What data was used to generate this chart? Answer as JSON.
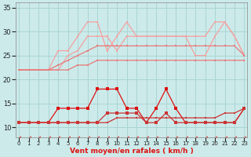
{
  "x": [
    0,
    1,
    2,
    3,
    4,
    5,
    6,
    7,
    8,
    9,
    10,
    11,
    12,
    13,
    14,
    15,
    16,
    17,
    18,
    19,
    20,
    21,
    22,
    23
  ],
  "line_rafale_high": [
    22,
    22,
    22,
    22,
    26,
    26,
    29,
    32,
    32,
    26,
    29,
    32,
    29,
    29,
    29,
    29,
    29,
    29,
    29,
    29,
    32,
    32,
    29,
    25
  ],
  "line_rafale_low": [
    22,
    22,
    22,
    22,
    22,
    25,
    26,
    29,
    29,
    29,
    26,
    29,
    29,
    29,
    29,
    29,
    29,
    29,
    25,
    25,
    29,
    32,
    29,
    25
  ],
  "line_avg_high": [
    22,
    22,
    22,
    22,
    23,
    24,
    25,
    26,
    27,
    27,
    27,
    27,
    27,
    27,
    27,
    27,
    27,
    27,
    27,
    27,
    27,
    27,
    27,
    25
  ],
  "line_avg_low": [
    22,
    22,
    22,
    22,
    22,
    22,
    23,
    23,
    24,
    24,
    24,
    24,
    24,
    24,
    24,
    24,
    24,
    24,
    24,
    24,
    24,
    24,
    24,
    24
  ],
  "line_wind_high": [
    11,
    11,
    11,
    11,
    14,
    14,
    14,
    14,
    18,
    18,
    18,
    14,
    14,
    11,
    14,
    18,
    14,
    11,
    11,
    11,
    11,
    11,
    11,
    14
  ],
  "line_wind_low": [
    11,
    11,
    11,
    11,
    11,
    11,
    11,
    11,
    11,
    13,
    13,
    13,
    13,
    11,
    11,
    13,
    11,
    11,
    11,
    11,
    11,
    11,
    11,
    14
  ],
  "line_wind_trend": [
    11,
    11,
    11,
    11,
    11,
    11,
    11,
    11,
    11,
    11,
    12,
    12,
    12,
    12,
    12,
    12,
    12,
    12,
    12,
    12,
    12,
    13,
    13,
    14
  ],
  "line_bottom": [
    8,
    8,
    8,
    8,
    8,
    8,
    8,
    8,
    8,
    8,
    8,
    8,
    8,
    8,
    8,
    8,
    8,
    8,
    8,
    8,
    8,
    8,
    8,
    8
  ],
  "background": "#cceaea",
  "grid_color": "#aad4d4",
  "color_light": "#f5a0a0",
  "color_mid_salmon": "#e87878",
  "color_dark_red": "#dd1111",
  "color_medium_red": "#cc3333",
  "color_dashed": "#e06666",
  "xlabel": "Vent moyen/en rafales ( km/h )",
  "ylim": [
    8,
    36
  ],
  "yticks": [
    10,
    15,
    20,
    25,
    30,
    35
  ],
  "xticks": [
    0,
    1,
    2,
    3,
    4,
    5,
    6,
    7,
    8,
    9,
    10,
    11,
    12,
    13,
    14,
    15,
    16,
    17,
    18,
    19,
    20,
    21,
    22,
    23
  ]
}
